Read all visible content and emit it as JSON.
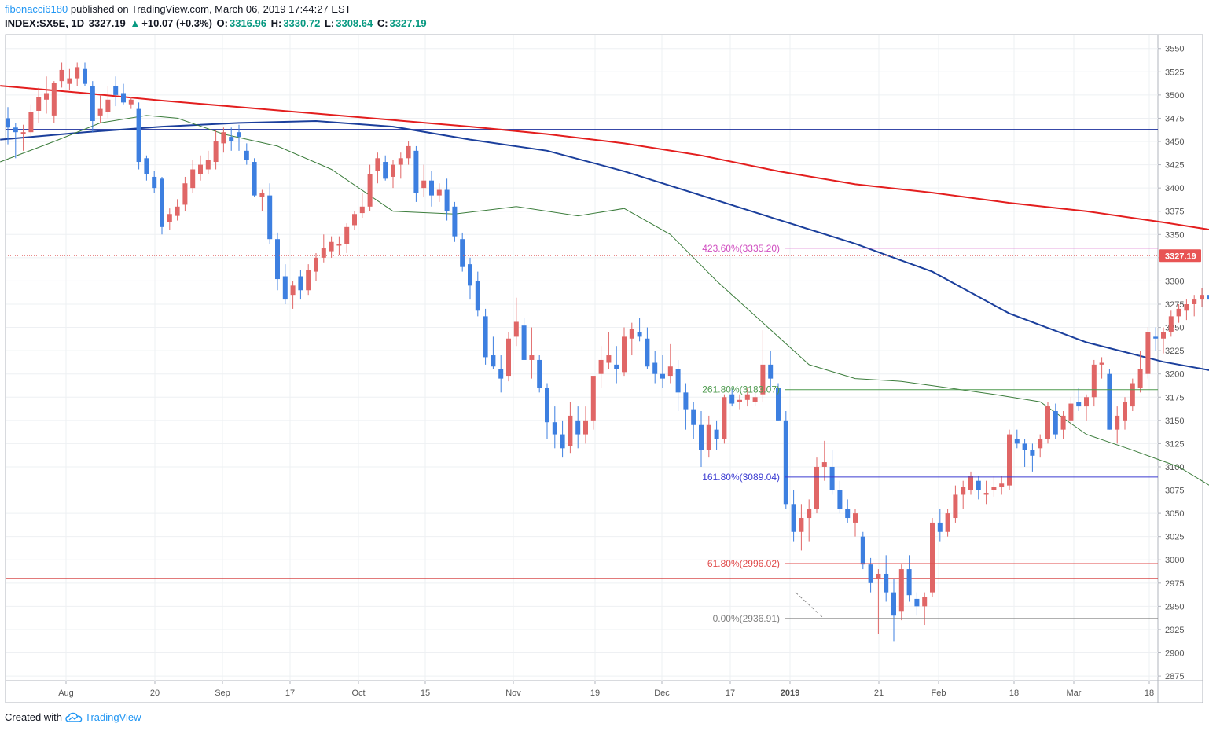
{
  "header": {
    "author": "fibonacci6180",
    "published": "published on TradingView.com, March 06, 2019 17:44:27 EST",
    "symbol": "INDEX:SX5E, 1D",
    "last": "3327.19",
    "change_arrow": "▲",
    "change": "+10.07 (+0.3%)",
    "open_label": "O:",
    "open": "3316.96",
    "high_label": "H:",
    "high": "3330.72",
    "low_label": "L:",
    "low": "3308.64",
    "close_label": "C:",
    "close": "3327.19"
  },
  "footer": {
    "created_with": "Created with",
    "brand": "TradingView"
  },
  "colors": {
    "up": "#e06666",
    "down": "#3d7fe0",
    "ma200": "#e31e1e",
    "ma100": "#1b3f9c",
    "ma20": "#3c7d3c",
    "fib_423": "#d04ec0",
    "fib_261": "#4e9a4e",
    "fib_161": "#3b3bd1",
    "fib_61": "#e04b4b",
    "fib_0": "#808080"
  },
  "chart_data": {
    "type": "candlestick",
    "x_tick_labels": [
      "Aug",
      "20",
      "Sep",
      "17",
      "Oct",
      "15",
      "Nov",
      "19",
      "Dec",
      "17",
      "2019",
      "21",
      "Feb",
      "18",
      "Mar",
      "18"
    ],
    "y_ticks": [
      2875,
      2900,
      2925,
      2950,
      2975,
      3000,
      3025,
      3050,
      3075,
      3100,
      3125,
      3150,
      3175,
      3200,
      3225,
      3250,
      3275,
      3300,
      3325,
      3350,
      3375,
      3400,
      3425,
      3450,
      3475,
      3500,
      3525,
      3550
    ],
    "ylim": [
      2870,
      3565
    ],
    "last_price_label": "3327.19",
    "horizontal_lines": [
      {
        "value": 3463,
        "color": "#1b2f9c"
      },
      {
        "value": 2980,
        "color": "#d12a2a"
      }
    ],
    "fib_levels": [
      {
        "label": "423.60%(3335.20)",
        "value": 3335.2,
        "color": "#d04ec0"
      },
      {
        "label": "261.80%(3183.07)",
        "value": 3183.07,
        "color": "#4e9a4e"
      },
      {
        "label": "161.80%(3089.04)",
        "value": 3089.04,
        "color": "#3b3bd1"
      },
      {
        "label": "61.80%(2996.02)",
        "value": 2996.02,
        "color": "#e04b4b"
      },
      {
        "label": "0.00%(2936.91)",
        "value": 2936.91,
        "color": "#808080"
      }
    ],
    "series": [
      {
        "name": "SMA 200",
        "values_approx": [
          3508,
          3470,
          3440,
          3400,
          3355,
          3325,
          3300,
          3285
        ]
      },
      {
        "name": "SMA 100",
        "values_approx": [
          3455,
          3472,
          3445,
          3360,
          3240,
          3170,
          3150,
          3153
        ]
      },
      {
        "name": "SMA 20",
        "values_approx": [
          3430,
          3480,
          3375,
          3200,
          3175,
          3030,
          3140,
          3243
        ]
      }
    ],
    "candles": [
      [
        3475,
        3487,
        3447,
        3465
      ],
      [
        3465,
        3470,
        3432,
        3460
      ],
      [
        3458,
        3468,
        3440,
        3460
      ],
      [
        3460,
        3490,
        3455,
        3482
      ],
      [
        3483,
        3508,
        3470,
        3498
      ],
      [
        3495,
        3520,
        3480,
        3502
      ],
      [
        3478,
        3515,
        3470,
        3513
      ],
      [
        3515,
        3535,
        3508,
        3527
      ],
      [
        3512,
        3528,
        3505,
        3518
      ],
      [
        3518,
        3535,
        3510,
        3530
      ],
      [
        3528,
        3535,
        3510,
        3512
      ],
      [
        3510,
        3515,
        3460,
        3472
      ],
      [
        3478,
        3500,
        3470,
        3485
      ],
      [
        3482,
        3510,
        3475,
        3495
      ],
      [
        3510,
        3520,
        3488,
        3500
      ],
      [
        3502,
        3512,
        3490,
        3492
      ],
      [
        3490,
        3498,
        3485,
        3495
      ],
      [
        3485,
        3492,
        3420,
        3428
      ],
      [
        3432,
        3435,
        3408,
        3415
      ],
      [
        3412,
        3418,
        3395,
        3400
      ],
      [
        3410,
        3412,
        3350,
        3358
      ],
      [
        3363,
        3378,
        3355,
        3372
      ],
      [
        3370,
        3388,
        3365,
        3380
      ],
      [
        3382,
        3412,
        3375,
        3405
      ],
      [
        3400,
        3430,
        3395,
        3420
      ],
      [
        3415,
        3435,
        3408,
        3425
      ],
      [
        3420,
        3440,
        3415,
        3430
      ],
      [
        3428,
        3462,
        3420,
        3450
      ],
      [
        3448,
        3465,
        3438,
        3460
      ],
      [
        3455,
        3465,
        3440,
        3450
      ],
      [
        3460,
        3468,
        3440,
        3455
      ],
      [
        3440,
        3448,
        3425,
        3430
      ],
      [
        3428,
        3432,
        3390,
        3392
      ],
      [
        3390,
        3398,
        3375,
        3395
      ],
      [
        3392,
        3405,
        3340,
        3345
      ],
      [
        3345,
        3352,
        3290,
        3302
      ],
      [
        3305,
        3318,
        3275,
        3280
      ],
      [
        3285,
        3300,
        3270,
        3295
      ],
      [
        3305,
        3312,
        3280,
        3290
      ],
      [
        3290,
        3318,
        3285,
        3312
      ],
      [
        3310,
        3330,
        3300,
        3325
      ],
      [
        3325,
        3350,
        3320,
        3335
      ],
      [
        3332,
        3348,
        3325,
        3342
      ],
      [
        3338,
        3348,
        3328,
        3340
      ],
      [
        3340,
        3362,
        3330,
        3358
      ],
      [
        3360,
        3375,
        3355,
        3372
      ],
      [
        3373,
        3395,
        3368,
        3380
      ],
      [
        3380,
        3425,
        3375,
        3415
      ],
      [
        3418,
        3438,
        3405,
        3432
      ],
      [
        3428,
        3435,
        3408,
        3410
      ],
      [
        3412,
        3430,
        3400,
        3425
      ],
      [
        3425,
        3438,
        3410,
        3432
      ],
      [
        3432,
        3450,
        3425,
        3445
      ],
      [
        3440,
        3445,
        3385,
        3395
      ],
      [
        3400,
        3425,
        3390,
        3408
      ],
      [
        3408,
        3418,
        3380,
        3392
      ],
      [
        3392,
        3405,
        3385,
        3398
      ],
      [
        3398,
        3410,
        3365,
        3375
      ],
      [
        3380,
        3385,
        3342,
        3348
      ],
      [
        3345,
        3352,
        3310,
        3315
      ],
      [
        3318,
        3325,
        3280,
        3295
      ],
      [
        3300,
        3310,
        3262,
        3268
      ],
      [
        3262,
        3270,
        3210,
        3218
      ],
      [
        3220,
        3240,
        3205,
        3208
      ],
      [
        3205,
        3220,
        3180,
        3195
      ],
      [
        3198,
        3245,
        3192,
        3238
      ],
      [
        3240,
        3282,
        3230,
        3256
      ],
      [
        3252,
        3260,
        3215,
        3215
      ],
      [
        3215,
        3250,
        3195,
        3220
      ],
      [
        3215,
        3220,
        3180,
        3185
      ],
      [
        3185,
        3190,
        3130,
        3148
      ],
      [
        3148,
        3165,
        3120,
        3135
      ],
      [
        3135,
        3150,
        3110,
        3120
      ],
      [
        3122,
        3170,
        3115,
        3155
      ],
      [
        3150,
        3165,
        3120,
        3135
      ],
      [
        3135,
        3165,
        3125,
        3150
      ],
      [
        3150,
        3195,
        3140,
        3198
      ],
      [
        3200,
        3230,
        3185,
        3215
      ],
      [
        3212,
        3245,
        3205,
        3220
      ],
      [
        3210,
        3230,
        3190,
        3205
      ],
      [
        3202,
        3250,
        3198,
        3240
      ],
      [
        3238,
        3255,
        3220,
        3248
      ],
      [
        3245,
        3260,
        3235,
        3240
      ],
      [
        3238,
        3250,
        3205,
        3208
      ],
      [
        3212,
        3225,
        3190,
        3200
      ],
      [
        3200,
        3220,
        3185,
        3195
      ],
      [
        3198,
        3232,
        3190,
        3208
      ],
      [
        3205,
        3215,
        3160,
        3180
      ],
      [
        3180,
        3190,
        3140,
        3162
      ],
      [
        3162,
        3170,
        3130,
        3145
      ],
      [
        3145,
        3160,
        3100,
        3118
      ],
      [
        3118,
        3155,
        3110,
        3145
      ],
      [
        3140,
        3150,
        3118,
        3130
      ],
      [
        3130,
        3178,
        3125,
        3175
      ],
      [
        3178,
        3185,
        3165,
        3168
      ],
      [
        3170,
        3178,
        3162,
        3172
      ],
      [
        3172,
        3185,
        3165,
        3178
      ],
      [
        3170,
        3180,
        3165,
        3175
      ],
      [
        3178,
        3247,
        3170,
        3210
      ],
      [
        3210,
        3225,
        3185,
        3195
      ],
      [
        3185,
        3190,
        3150,
        3150
      ],
      [
        3150,
        3160,
        3055,
        3060
      ],
      [
        3060,
        3075,
        3020,
        3030
      ],
      [
        3030,
        3060,
        3010,
        3045
      ],
      [
        3045,
        3065,
        3020,
        3055
      ],
      [
        3055,
        3110,
        3050,
        3100
      ],
      [
        3100,
        3128,
        3085,
        3105
      ],
      [
        3100,
        3118,
        3070,
        3075
      ],
      [
        3075,
        3085,
        3050,
        3055
      ],
      [
        3055,
        3065,
        3040,
        3045
      ],
      [
        3040,
        3055,
        3025,
        3050
      ],
      [
        3025,
        3030,
        2990,
        2995
      ],
      [
        2995,
        3002,
        2965,
        2975
      ],
      [
        2980,
        2990,
        2920,
        2985
      ],
      [
        2985,
        3005,
        2955,
        2965
      ],
      [
        2965,
        2980,
        2912,
        2940
      ],
      [
        2945,
        2995,
        2935,
        2990
      ],
      [
        2990,
        3005,
        2955,
        2962
      ],
      [
        2958,
        2965,
        2940,
        2950
      ],
      [
        2950,
        2965,
        2930,
        2960
      ],
      [
        2965,
        3045,
        2960,
        3040
      ],
      [
        3040,
        3055,
        3020,
        3030
      ],
      [
        3030,
        3055,
        3025,
        3050
      ],
      [
        3045,
        3080,
        3040,
        3070
      ],
      [
        3070,
        3085,
        3055,
        3078
      ],
      [
        3075,
        3095,
        3070,
        3090
      ],
      [
        3085,
        3090,
        3065,
        3075
      ],
      [
        3070,
        3085,
        3060,
        3072
      ],
      [
        3075,
        3090,
        3068,
        3078
      ],
      [
        3078,
        3090,
        3070,
        3082
      ],
      [
        3080,
        3140,
        3075,
        3135
      ],
      [
        3130,
        3140,
        3120,
        3125
      ],
      [
        3125,
        3130,
        3100,
        3118
      ],
      [
        3118,
        3125,
        3095,
        3112
      ],
      [
        3120,
        3135,
        3110,
        3130
      ],
      [
        3130,
        3170,
        3125,
        3165
      ],
      [
        3160,
        3168,
        3130,
        3135
      ],
      [
        3140,
        3160,
        3130,
        3155
      ],
      [
        3150,
        3175,
        3140,
        3168
      ],
      [
        3170,
        3185,
        3160,
        3165
      ],
      [
        3165,
        3178,
        3150,
        3175
      ],
      [
        3175,
        3215,
        3165,
        3210
      ],
      [
        3210,
        3218,
        3195,
        3212
      ],
      [
        3200,
        3205,
        3140,
        3140
      ],
      [
        3140,
        3165,
        3125,
        3155
      ],
      [
        3150,
        3175,
        3140,
        3170
      ],
      [
        3165,
        3195,
        3160,
        3190
      ],
      [
        3185,
        3225,
        3180,
        3205
      ],
      [
        3200,
        3250,
        3195,
        3245
      ],
      [
        3240,
        3250,
        3225,
        3238
      ],
      [
        3238,
        3250,
        3222,
        3245
      ],
      [
        3245,
        3268,
        3240,
        3262
      ],
      [
        3262,
        3275,
        3255,
        3270
      ],
      [
        3268,
        3280,
        3258,
        3275
      ],
      [
        3275,
        3285,
        3262,
        3280
      ],
      [
        3280,
        3292,
        3272,
        3285
      ],
      [
        3285,
        3292,
        3268,
        3280
      ],
      [
        3280,
        3298,
        3272,
        3295
      ],
      [
        3295,
        3305,
        3268,
        3300
      ],
      [
        3305,
        3318,
        3300,
        3312
      ],
      [
        3316,
        3331,
        3308,
        3327
      ]
    ]
  }
}
